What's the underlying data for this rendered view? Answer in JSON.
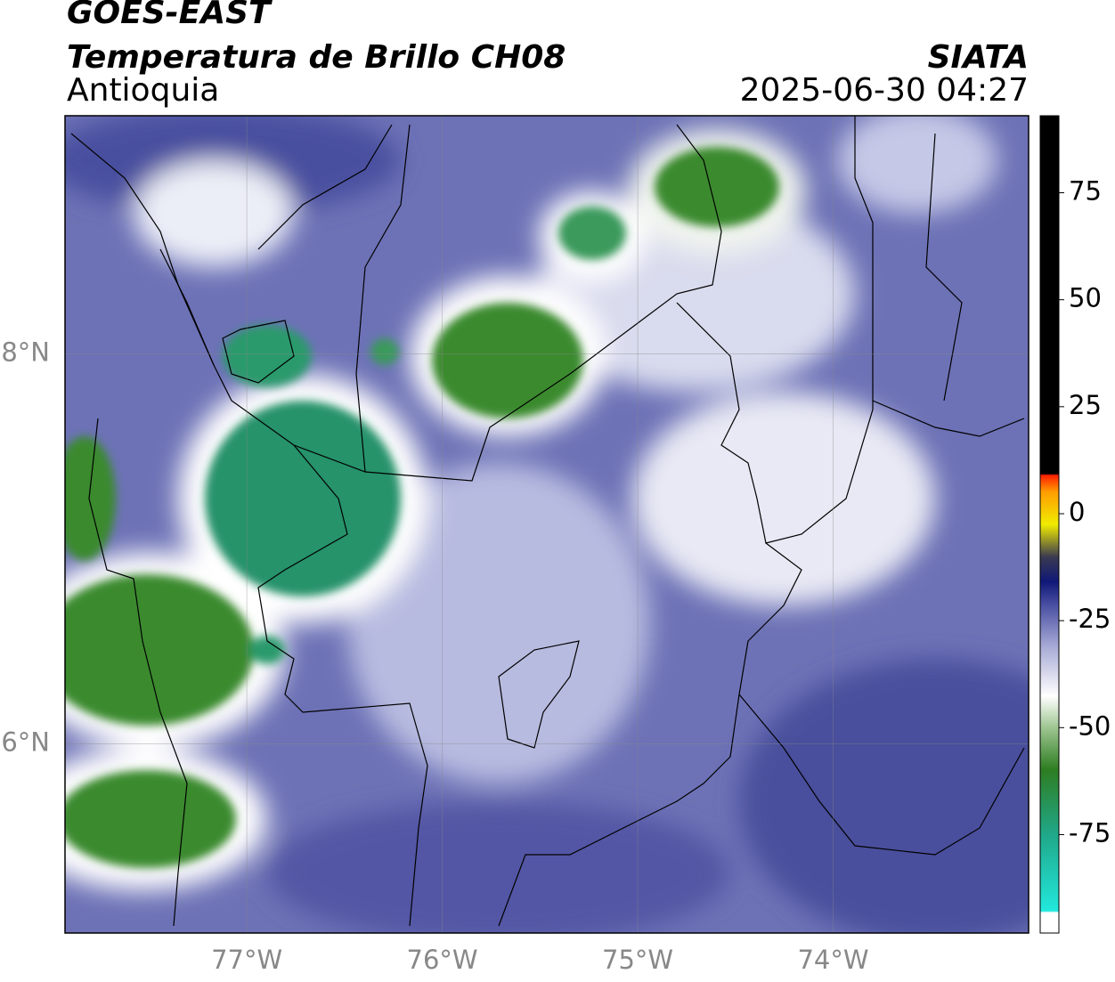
{
  "header": {
    "title": "GOES-EAST",
    "subtitle": "Temperatura de Brillo CH08",
    "region": "Antioquia",
    "source": "SIATA",
    "timestamp": "2025-06-30 04:27"
  },
  "map": {
    "xlim": [
      -77.93,
      -73.0
    ],
    "ylim": [
      5.03,
      9.22
    ],
    "xticks": [
      {
        "value": -77,
        "label": "77°W"
      },
      {
        "value": -76,
        "label": "76°W"
      },
      {
        "value": -75,
        "label": "75°W"
      },
      {
        "value": -74,
        "label": "74°W"
      }
    ],
    "yticks": [
      {
        "value": 6,
        "label": "6°N"
      },
      {
        "value": 8,
        "label": "8°N"
      }
    ],
    "grid": true
  },
  "colorbar": {
    "lim": [
      -98,
      93
    ],
    "ticks": [
      -75,
      -50,
      -25,
      0,
      25,
      50,
      75
    ]
  }
}
